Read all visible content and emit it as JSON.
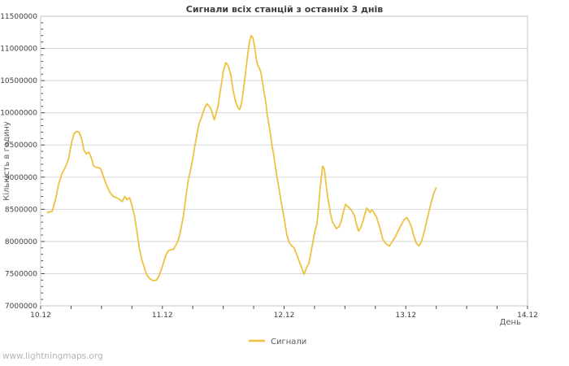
{
  "footer": "www.lightningmaps.org",
  "colors": {
    "series_line": "#EDC240",
    "gridline": "#d8d8d8",
    "frame": "#c4c4c4",
    "tick": "#4a4a4a",
    "label_text": "#3d3d3d",
    "muted_text": "#5a5a5a",
    "watermark_text": "#b4b4b4",
    "background": "#ffffff"
  },
  "chart_data": {
    "type": "line",
    "title": "Сигнали всіх станцій з останніх 3 днів",
    "xlabel": "День",
    "ylabel": "Кількість в годину",
    "legend": [
      "Сигнали"
    ],
    "legend_position": "bottom-center",
    "grid": "horizontal-only",
    "ylim": [
      7000000,
      11500000
    ],
    "y_tick_step": 500000,
    "y_minor_step": 100000,
    "xlim_days": [
      0,
      4
    ],
    "x_minor_step_days": 0.25,
    "x_ticks": [
      {
        "pos": 0,
        "label": "10.12"
      },
      {
        "pos": 1,
        "label": "11.12"
      },
      {
        "pos": 2,
        "label": "12.12"
      },
      {
        "pos": 3,
        "label": "13.12"
      },
      {
        "pos": 4,
        "label": "14.12"
      }
    ],
    "series": [
      {
        "name": "Сигнали",
        "color": "#EDC240",
        "points": [
          [
            0.055,
            8450000
          ],
          [
            0.095,
            8470000
          ],
          [
            0.122,
            8650000
          ],
          [
            0.149,
            8900000
          ],
          [
            0.175,
            9050000
          ],
          [
            0.202,
            9150000
          ],
          [
            0.229,
            9280000
          ],
          [
            0.256,
            9550000
          ],
          [
            0.276,
            9680000
          ],
          [
            0.296,
            9710000
          ],
          [
            0.316,
            9700000
          ],
          [
            0.336,
            9600000
          ],
          [
            0.356,
            9420000
          ],
          [
            0.376,
            9360000
          ],
          [
            0.396,
            9390000
          ],
          [
            0.416,
            9300000
          ],
          [
            0.436,
            9170000
          ],
          [
            0.463,
            9150000
          ],
          [
            0.49,
            9140000
          ],
          [
            0.517,
            9000000
          ],
          [
            0.543,
            8870000
          ],
          [
            0.57,
            8760000
          ],
          [
            0.597,
            8700000
          ],
          [
            0.624,
            8680000
          ],
          [
            0.651,
            8650000
          ],
          [
            0.671,
            8620000
          ],
          [
            0.691,
            8700000
          ],
          [
            0.711,
            8650000
          ],
          [
            0.731,
            8680000
          ],
          [
            0.751,
            8550000
          ],
          [
            0.771,
            8400000
          ],
          [
            0.791,
            8150000
          ],
          [
            0.811,
            7900000
          ],
          [
            0.831,
            7720000
          ],
          [
            0.851,
            7600000
          ],
          [
            0.872,
            7480000
          ],
          [
            0.898,
            7420000
          ],
          [
            0.925,
            7390000
          ],
          [
            0.952,
            7400000
          ],
          [
            0.972,
            7460000
          ],
          [
            0.992,
            7570000
          ],
          [
            1.012,
            7680000
          ],
          [
            1.032,
            7800000
          ],
          [
            1.052,
            7860000
          ],
          [
            1.072,
            7870000
          ],
          [
            1.092,
            7880000
          ],
          [
            1.113,
            7950000
          ],
          [
            1.133,
            8030000
          ],
          [
            1.153,
            8200000
          ],
          [
            1.173,
            8400000
          ],
          [
            1.193,
            8700000
          ],
          [
            1.213,
            8950000
          ],
          [
            1.233,
            9120000
          ],
          [
            1.253,
            9320000
          ],
          [
            1.273,
            9550000
          ],
          [
            1.3,
            9820000
          ],
          [
            1.327,
            9960000
          ],
          [
            1.347,
            10070000
          ],
          [
            1.367,
            10140000
          ],
          [
            1.394,
            10080000
          ],
          [
            1.427,
            9890000
          ],
          [
            1.454,
            10070000
          ],
          [
            1.481,
            10400000
          ],
          [
            1.501,
            10650000
          ],
          [
            1.521,
            10780000
          ],
          [
            1.541,
            10730000
          ],
          [
            1.561,
            10600000
          ],
          [
            1.581,
            10350000
          ],
          [
            1.601,
            10180000
          ],
          [
            1.621,
            10080000
          ],
          [
            1.635,
            10050000
          ],
          [
            1.648,
            10130000
          ],
          [
            1.661,
            10280000
          ],
          [
            1.675,
            10490000
          ],
          [
            1.688,
            10700000
          ],
          [
            1.702,
            10920000
          ],
          [
            1.715,
            11090000
          ],
          [
            1.728,
            11200000
          ],
          [
            1.742,
            11170000
          ],
          [
            1.755,
            11060000
          ],
          [
            1.768,
            10880000
          ],
          [
            1.782,
            10740000
          ],
          [
            1.795,
            10700000
          ],
          [
            1.808,
            10640000
          ],
          [
            1.822,
            10490000
          ],
          [
            1.835,
            10320000
          ],
          [
            1.849,
            10170000
          ],
          [
            1.862,
            9970000
          ],
          [
            1.875,
            9820000
          ],
          [
            1.889,
            9650000
          ],
          [
            1.902,
            9480000
          ],
          [
            1.916,
            9330000
          ],
          [
            1.929,
            9150000
          ],
          [
            1.942,
            9000000
          ],
          [
            1.956,
            8850000
          ],
          [
            1.969,
            8690000
          ],
          [
            1.989,
            8480000
          ],
          [
            2.01,
            8250000
          ],
          [
            2.023,
            8100000
          ],
          [
            2.043,
            7980000
          ],
          [
            2.057,
            7950000
          ],
          [
            2.063,
            7930000
          ],
          [
            2.083,
            7900000
          ],
          [
            2.103,
            7800000
          ],
          [
            2.123,
            7700000
          ],
          [
            2.143,
            7600000
          ],
          [
            2.163,
            7490000
          ],
          [
            2.184,
            7590000
          ],
          [
            2.204,
            7660000
          ],
          [
            2.224,
            7860000
          ],
          [
            2.244,
            8060000
          ],
          [
            2.257,
            8190000
          ],
          [
            2.27,
            8270000
          ],
          [
            2.284,
            8550000
          ],
          [
            2.297,
            8850000
          ],
          [
            2.311,
            9080000
          ],
          [
            2.317,
            9170000
          ],
          [
            2.331,
            9120000
          ],
          [
            2.344,
            8900000
          ],
          [
            2.357,
            8700000
          ],
          [
            2.371,
            8550000
          ],
          [
            2.384,
            8400000
          ],
          [
            2.398,
            8300000
          ],
          [
            2.411,
            8260000
          ],
          [
            2.431,
            8200000
          ],
          [
            2.451,
            8230000
          ],
          [
            2.471,
            8320000
          ],
          [
            2.485,
            8440000
          ],
          [
            2.505,
            8580000
          ],
          [
            2.525,
            8540000
          ],
          [
            2.538,
            8520000
          ],
          [
            2.558,
            8470000
          ],
          [
            2.578,
            8400000
          ],
          [
            2.592,
            8280000
          ],
          [
            2.612,
            8160000
          ],
          [
            2.632,
            8220000
          ],
          [
            2.652,
            8340000
          ],
          [
            2.665,
            8440000
          ],
          [
            2.679,
            8520000
          ],
          [
            2.692,
            8490000
          ],
          [
            2.705,
            8450000
          ],
          [
            2.719,
            8490000
          ],
          [
            2.732,
            8470000
          ],
          [
            2.745,
            8420000
          ],
          [
            2.759,
            8380000
          ],
          [
            2.772,
            8300000
          ],
          [
            2.786,
            8220000
          ],
          [
            2.799,
            8120000
          ],
          [
            2.812,
            8030000
          ],
          [
            2.826,
            7990000
          ],
          [
            2.846,
            7950000
          ],
          [
            2.866,
            7930000
          ],
          [
            2.886,
            7990000
          ],
          [
            2.906,
            8050000
          ],
          [
            2.926,
            8120000
          ],
          [
            2.946,
            8200000
          ],
          [
            2.966,
            8270000
          ],
          [
            2.986,
            8340000
          ],
          [
            3.007,
            8370000
          ],
          [
            3.027,
            8310000
          ],
          [
            3.047,
            8220000
          ],
          [
            3.067,
            8080000
          ],
          [
            3.087,
            7970000
          ],
          [
            3.107,
            7930000
          ],
          [
            3.127,
            7990000
          ],
          [
            3.147,
            8120000
          ],
          [
            3.167,
            8280000
          ],
          [
            3.188,
            8450000
          ],
          [
            3.208,
            8600000
          ],
          [
            3.228,
            8740000
          ],
          [
            3.248,
            8830000
          ]
        ]
      }
    ]
  }
}
